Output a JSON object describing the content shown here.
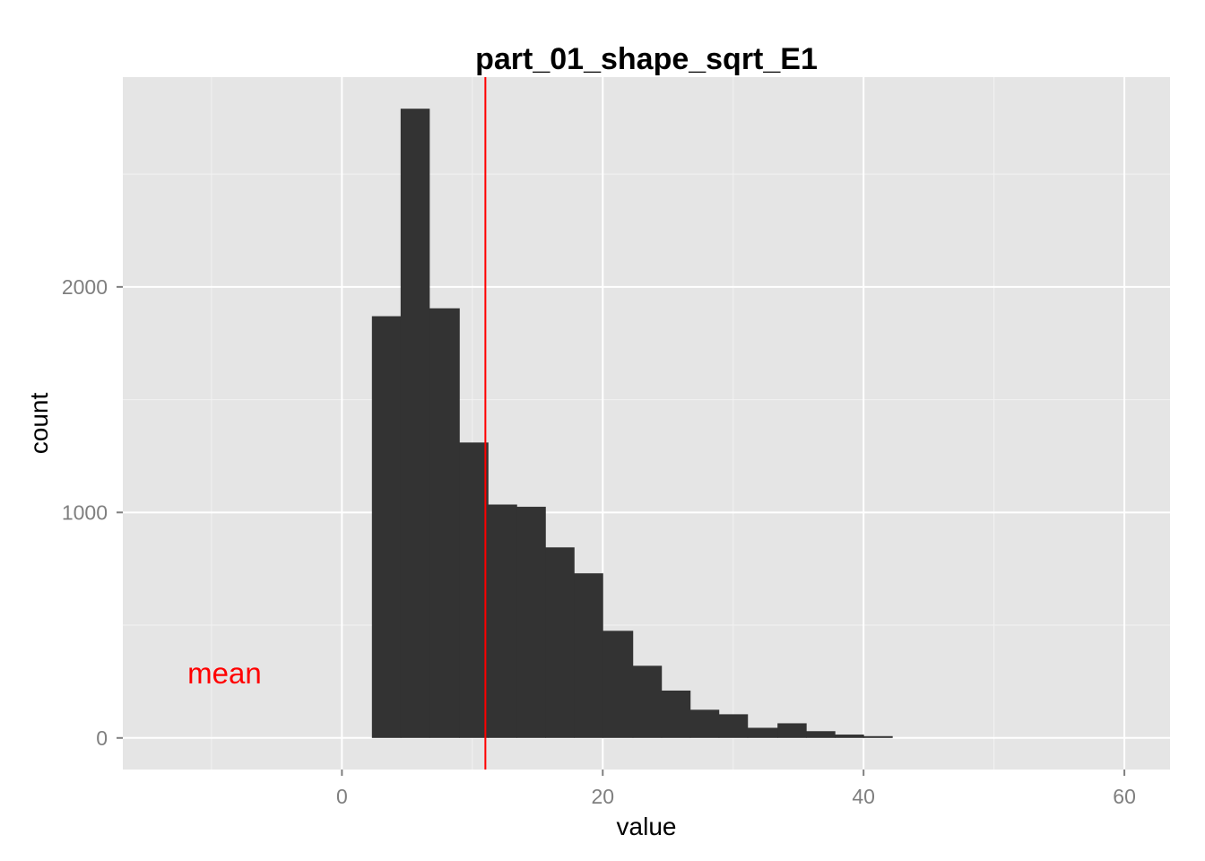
{
  "chart_data": {
    "type": "bar",
    "title": "part_01_shape_sqrt_E1",
    "xlabel": "value",
    "ylabel": "count",
    "xlim": [
      -16.8,
      63.5
    ],
    "ylim": [
      -140,
      2930
    ],
    "x_ticks": [
      0,
      20,
      40,
      60
    ],
    "x_tick_labels": [
      "0",
      "20",
      "40",
      "60"
    ],
    "y_ticks": [
      0,
      1000,
      2000
    ],
    "y_tick_labels": [
      "0",
      "1000",
      "2000"
    ],
    "grid": true,
    "bin_width": 2.22,
    "bins": [
      {
        "x0": 2.3,
        "x1": 4.5,
        "count": 1870
      },
      {
        "x0": 4.5,
        "x1": 6.7,
        "count": 2790
      },
      {
        "x0": 6.7,
        "x1": 9.0,
        "count": 1905
      },
      {
        "x0": 9.0,
        "x1": 11.2,
        "count": 1310
      },
      {
        "x0": 11.2,
        "x1": 13.4,
        "count": 1035
      },
      {
        "x0": 13.4,
        "x1": 15.6,
        "count": 1025
      },
      {
        "x0": 15.6,
        "x1": 17.8,
        "count": 845
      },
      {
        "x0": 17.8,
        "x1": 20.0,
        "count": 730
      },
      {
        "x0": 20.0,
        "x1": 22.3,
        "count": 475
      },
      {
        "x0": 22.3,
        "x1": 24.5,
        "count": 320
      },
      {
        "x0": 24.5,
        "x1": 26.7,
        "count": 210
      },
      {
        "x0": 26.7,
        "x1": 28.9,
        "count": 125
      },
      {
        "x0": 28.9,
        "x1": 31.1,
        "count": 105
      },
      {
        "x0": 31.1,
        "x1": 33.4,
        "count": 45
      },
      {
        "x0": 33.4,
        "x1": 35.6,
        "count": 65
      },
      {
        "x0": 35.6,
        "x1": 37.8,
        "count": 30
      },
      {
        "x0": 37.8,
        "x1": 40.0,
        "count": 15
      },
      {
        "x0": 40.0,
        "x1": 42.2,
        "count": 8
      }
    ],
    "mean_line": {
      "x": 11.0,
      "color": "#ff0000"
    },
    "annotation": {
      "text": "mean",
      "x": -9.0,
      "y": 290,
      "color": "#ff0000"
    },
    "colors": {
      "bar": "#333333",
      "panel": "#e5e5e5",
      "grid_major": "#ffffff",
      "grid_minor": "#f2f2f2",
      "tick_label": "#7f7f7f"
    }
  }
}
